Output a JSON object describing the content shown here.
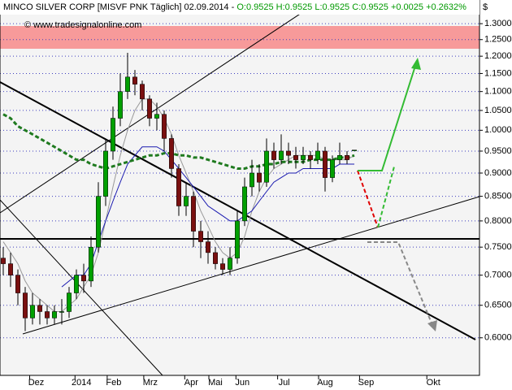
{
  "header": {
    "title": "MINCO SILVER CORP [MISVF PNK  Täglich] 02.09.2014 -",
    "ohlc": "O:0.9525 H:0.9525 L:0.9525",
    "change": "C:0.9525 +0.0025 +0.2632%",
    "currency": "$"
  },
  "chart_data": {
    "type": "candlestick",
    "watermark": "© www.tradesignalonline.com",
    "log_scale": true,
    "grid": true,
    "up_color": "#00a000",
    "down_color": "#7a1010",
    "x": [
      0,
      1,
      2,
      3,
      4,
      5,
      6,
      7,
      8,
      9,
      10,
      11,
      12,
      13,
      14,
      15,
      16,
      17,
      18,
      19,
      20,
      21,
      22,
      23,
      24,
      25,
      26,
      27,
      28,
      29,
      30,
      31,
      32,
      33,
      34,
      35,
      36,
      37,
      38,
      39,
      40,
      41,
      42,
      43,
      44,
      45,
      46,
      47,
      48
    ],
    "open": [
      0.73,
      0.72,
      0.7,
      0.67,
      0.63,
      0.65,
      0.64,
      0.63,
      0.64,
      0.64,
      0.67,
      0.7,
      0.69,
      0.75,
      0.85,
      0.95,
      1.03,
      1.1,
      1.14,
      1.12,
      1.08,
      1.03,
      1.04,
      0.98,
      0.91,
      0.83,
      0.85,
      0.78,
      0.76,
      0.74,
      0.72,
      0.71,
      0.73,
      0.8,
      0.87,
      0.9,
      0.88,
      0.95,
      0.93,
      0.95,
      0.94,
      0.93,
      0.94,
      0.93,
      0.95,
      0.89,
      0.93,
      0.94,
      0.9525
    ],
    "high": [
      0.75,
      0.74,
      0.71,
      0.68,
      0.67,
      0.66,
      0.65,
      0.65,
      0.66,
      0.68,
      0.71,
      0.72,
      0.77,
      0.88,
      0.98,
      1.06,
      1.15,
      1.21,
      1.16,
      1.13,
      1.09,
      1.07,
      1.05,
      0.99,
      0.92,
      0.88,
      0.86,
      0.8,
      0.78,
      0.75,
      0.73,
      0.75,
      0.82,
      0.89,
      0.93,
      0.92,
      0.98,
      0.97,
      0.99,
      0.97,
      0.96,
      0.96,
      0.95,
      0.97,
      0.96,
      0.94,
      0.97,
      0.95,
      0.9525
    ],
    "low": [
      0.7,
      0.68,
      0.65,
      0.61,
      0.62,
      0.62,
      0.62,
      0.62,
      0.62,
      0.63,
      0.66,
      0.67,
      0.68,
      0.74,
      0.83,
      0.93,
      1.01,
      1.08,
      1.09,
      1.05,
      1.01,
      1.0,
      0.95,
      0.89,
      0.81,
      0.81,
      0.75,
      0.73,
      0.72,
      0.71,
      0.7,
      0.7,
      0.72,
      0.79,
      0.85,
      0.86,
      0.87,
      0.91,
      0.92,
      0.92,
      0.91,
      0.92,
      0.91,
      0.92,
      0.86,
      0.88,
      0.92,
      0.92,
      0.9525
    ],
    "close": [
      0.72,
      0.7,
      0.67,
      0.63,
      0.65,
      0.64,
      0.63,
      0.64,
      0.64,
      0.67,
      0.7,
      0.69,
      0.75,
      0.85,
      0.95,
      1.03,
      1.1,
      1.14,
      1.12,
      1.08,
      1.03,
      1.04,
      0.98,
      0.91,
      0.83,
      0.85,
      0.78,
      0.76,
      0.74,
      0.72,
      0.71,
      0.73,
      0.8,
      0.87,
      0.9,
      0.88,
      0.95,
      0.93,
      0.95,
      0.94,
      0.93,
      0.94,
      0.93,
      0.95,
      0.89,
      0.93,
      0.94,
      0.93,
      0.9525
    ],
    "overlays": [
      {
        "color": "#999999",
        "dash": false,
        "values": [
          0.76,
          0.74,
          0.72,
          0.69,
          0.67,
          0.66,
          0.65,
          0.64,
          0.64,
          0.65,
          0.66,
          0.68,
          0.7,
          0.74,
          0.8,
          0.87,
          0.94,
          1.0,
          1.05,
          1.08,
          1.08,
          1.06,
          1.03,
          0.99,
          0.94,
          0.9,
          0.86,
          0.82,
          0.79,
          0.76,
          0.74,
          0.73,
          0.74,
          0.77,
          0.82,
          0.86,
          0.89,
          0.91,
          0.92,
          0.93,
          0.94,
          0.94,
          0.94,
          0.94,
          0.93,
          0.93,
          0.93,
          0.93,
          0.94
        ]
      },
      {
        "color": "#1a1ab0",
        "dash": false,
        "values": [
          null,
          null,
          null,
          null,
          null,
          null,
          null,
          null,
          0.68,
          0.69,
          0.7,
          0.7,
          0.72,
          0.76,
          0.8,
          0.84,
          0.88,
          0.92,
          0.94,
          0.96,
          0.96,
          0.96,
          0.95,
          0.93,
          0.91,
          0.89,
          0.87,
          0.85,
          0.83,
          0.82,
          0.81,
          0.8,
          0.8,
          0.81,
          0.82,
          0.84,
          0.86,
          0.88,
          0.89,
          0.9,
          0.9,
          0.91,
          0.91,
          0.91,
          0.91,
          0.91,
          0.92,
          0.92,
          0.92
        ]
      },
      {
        "color": "#1f7a1f",
        "dash": true,
        "values": [
          1.04,
          1.03,
          1.01,
          1.0,
          0.99,
          0.98,
          0.97,
          0.96,
          0.95,
          0.94,
          0.93,
          0.93,
          0.92,
          0.915,
          0.91,
          0.915,
          0.92,
          0.925,
          0.93,
          0.935,
          0.94,
          0.94,
          0.945,
          0.945,
          0.94,
          0.94,
          0.935,
          0.935,
          0.93,
          0.925,
          0.92,
          0.915,
          0.91,
          0.91,
          0.915,
          0.915,
          0.92,
          0.92,
          0.925,
          0.925,
          0.925,
          0.925,
          0.93,
          0.93,
          0.93,
          0.93,
          0.935,
          0.935,
          0.94
        ]
      }
    ],
    "xlim": [
      -0.444,
      65.11
    ],
    "xticks": [
      {
        "value": 4.5,
        "label": "Dez"
      },
      {
        "value": 10.7,
        "label": "2014"
      },
      {
        "value": 15.1,
        "label": "Feb"
      },
      {
        "value": 20.1,
        "label": "Mrz"
      },
      {
        "value": 25.7,
        "label": "Apr"
      },
      {
        "value": 29,
        "label": "Mai"
      },
      {
        "value": 32.7,
        "label": "Jun"
      },
      {
        "value": 38.4,
        "label": "Jul"
      },
      {
        "value": 44,
        "label": "Aug"
      },
      {
        "value": 49.6,
        "label": "Sep"
      },
      {
        "value": 58.8,
        "label": "Okt"
      }
    ],
    "ylim": [
      0.547,
      1.378
    ],
    "yticks": [
      {
        "value": 1.3,
        "label": "1.3000"
      },
      {
        "value": 1.25,
        "label": "1.2500"
      },
      {
        "value": 1.2,
        "label": "1.2000"
      },
      {
        "value": 1.15,
        "label": "1.1500"
      },
      {
        "value": 1.1,
        "label": "1.1000"
      },
      {
        "value": 1.05,
        "label": "1.0500"
      },
      {
        "value": 1,
        "label": "1.0000"
      },
      {
        "value": 0.95,
        "label": "0.9500"
      },
      {
        "value": 0.9,
        "label": "0.9000"
      },
      {
        "value": 0.85,
        "label": "0.8500"
      },
      {
        "value": 0.8,
        "label": "0.8000"
      },
      {
        "value": 0.75,
        "label": "0.7500"
      },
      {
        "value": 0.7,
        "label": "0.7000"
      },
      {
        "value": 0.65,
        "label": "0.6500"
      },
      {
        "value": 0.6,
        "label": "0.6000"
      }
    ]
  }
}
